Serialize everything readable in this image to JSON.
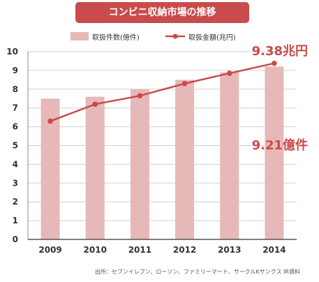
{
  "colors": {
    "accent": "#c94b4b",
    "bar": "#e7b8b8",
    "line": "#c94b4b",
    "grid": "#d0d0d0",
    "text": "#333333"
  },
  "chart_data": {
    "type": "bar",
    "title": "コンビニ収納市場の推移",
    "categories": [
      "2009",
      "2010",
      "2011",
      "2012",
      "2013",
      "2014"
    ],
    "ylim": [
      0,
      10
    ],
    "yticks": [
      0,
      1,
      2,
      3,
      4,
      5,
      6,
      7,
      8,
      9,
      10
    ],
    "grid": true,
    "legend_position": "top",
    "series": [
      {
        "name": "取扱件数(億件)",
        "type": "bar",
        "values": [
          7.5,
          7.6,
          8.0,
          8.5,
          8.9,
          9.21
        ]
      },
      {
        "name": "取扱金額(兆円)",
        "type": "line",
        "values": [
          6.3,
          7.2,
          7.65,
          8.3,
          8.85,
          9.38
        ]
      }
    ],
    "annotations": [
      {
        "text": "9.38兆円",
        "series": "取扱金額(兆円)"
      },
      {
        "text": "9.21億件",
        "series": "取扱件数(億件)"
      }
    ],
    "source": "出所：セブンイレブン、ローソン、ファミリーマート、サークルKサンクス IR資料"
  }
}
